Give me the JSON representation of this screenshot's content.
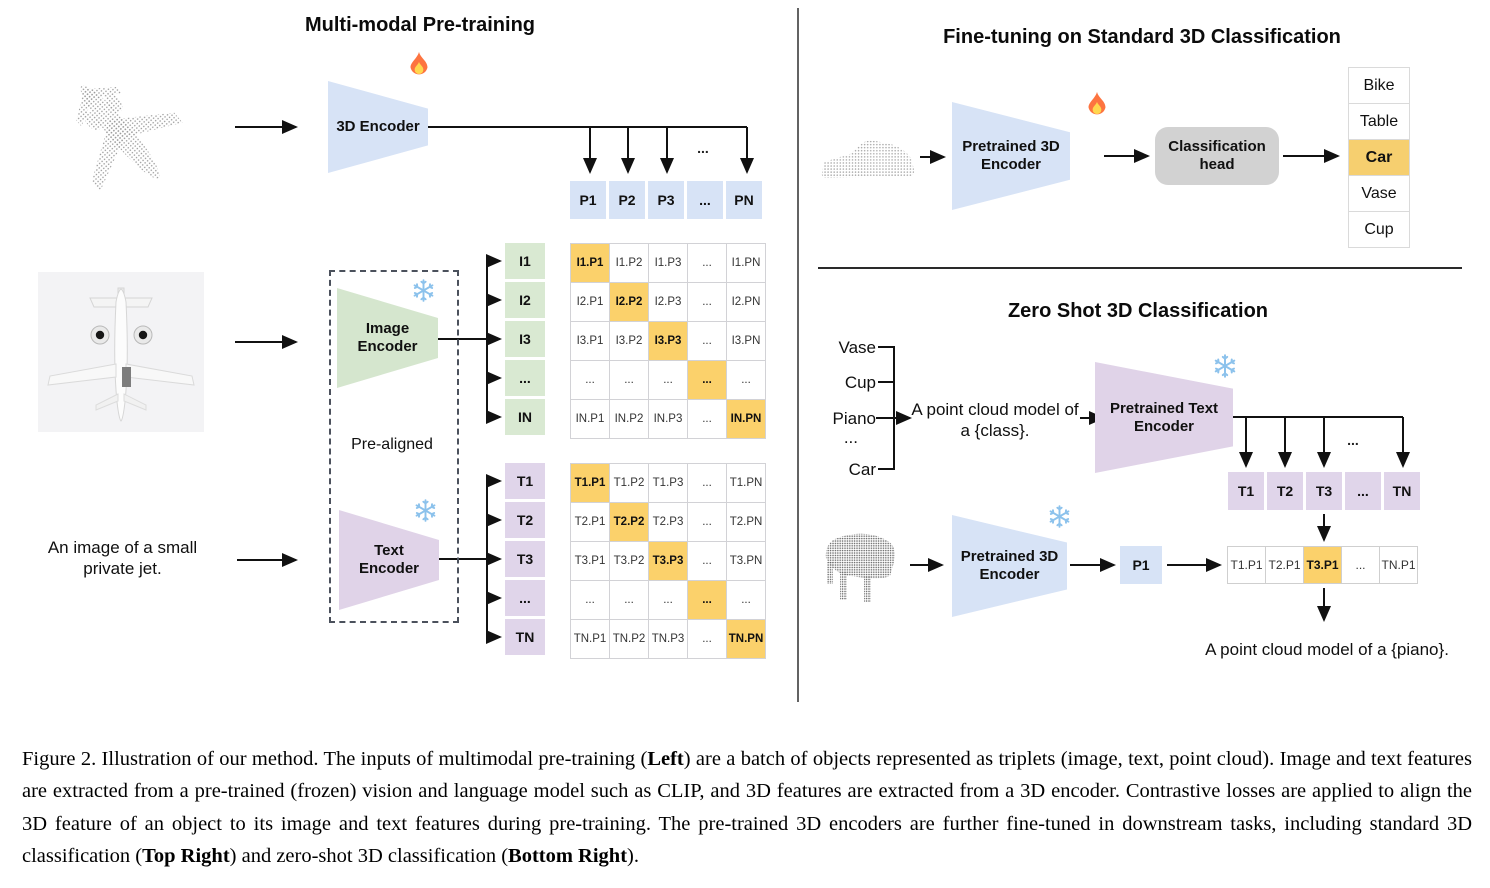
{
  "figure": {
    "pretraining": {
      "title": "Multi-modal Pre-training",
      "encoder3d_label": "3D Encoder",
      "image_encoder_label_lines": [
        "Image",
        "Encoder"
      ],
      "text_encoder_label_lines": [
        "Text",
        "Encoder"
      ],
      "prealigned": "Pre-aligned",
      "image_caption_lines": [
        "An image of a small",
        "private jet."
      ],
      "ellipsis": "...",
      "p_row": [
        "P1",
        "P2",
        "P3",
        "...",
        "PN"
      ],
      "i_col": [
        "I1",
        "I2",
        "I3",
        "...",
        "IN"
      ],
      "t_col": [
        "T1",
        "T2",
        "T3",
        "...",
        "TN"
      ],
      "image_matrix": [
        [
          "I1.P1",
          "I1.P2",
          "I1.P3",
          "...",
          "I1.PN"
        ],
        [
          "I2.P1",
          "I2.P2",
          "I2.P3",
          "...",
          "I2.PN"
        ],
        [
          "I3.P1",
          "I3.P2",
          "I3.P3",
          "...",
          "I3.PN"
        ],
        [
          "...",
          "...",
          "...",
          "...",
          "..."
        ],
        [
          "IN.P1",
          "IN.P2",
          "IN.P3",
          "...",
          "IN.PN"
        ]
      ],
      "text_matrix": [
        [
          "T1.P1",
          "T1.P2",
          "T1.P3",
          "...",
          "T1.PN"
        ],
        [
          "T2.P1",
          "T2.P2",
          "T2.P3",
          "...",
          "T2.PN"
        ],
        [
          "T3.P1",
          "T3.P2",
          "T3.P3",
          "...",
          "T3.PN"
        ],
        [
          "...",
          "...",
          "...",
          "...",
          "..."
        ],
        [
          "TN.P1",
          "TN.P2",
          "TN.P3",
          "...",
          "TN.PN"
        ]
      ]
    },
    "finetune": {
      "title": "Fine-tuning on Standard 3D Classification",
      "encoder_label_lines": [
        "Pretrained 3D",
        "Encoder"
      ],
      "head_label_lines": [
        "Classification",
        "head"
      ],
      "classes": [
        "Bike",
        "Table",
        "Car",
        "Vase",
        "Cup"
      ],
      "predicted_class": "Car"
    },
    "zeroshot": {
      "title": "Zero Shot 3D Classification",
      "class_labels": [
        "Vase",
        "Cup",
        "Piano",
        "...",
        "Car"
      ],
      "prompt_lines": [
        "A point cloud model of",
        "a {class}."
      ],
      "text_encoder_label_lines": [
        "Pretrained Text",
        "Encoder"
      ],
      "encoder3d_label_lines": [
        "Pretrained 3D",
        "Encoder"
      ],
      "t_row": [
        "T1",
        "T2",
        "T3",
        "...",
        "TN"
      ],
      "p_cell": "P1",
      "sim_row": [
        "T1.P1",
        "T2.P1",
        "T3.P1",
        "...",
        "TN.P1"
      ],
      "highlighted_sim": "T3.P1",
      "ellipsis": "...",
      "result_prompt": "A point cloud model of a {piano}."
    },
    "caption_segments": [
      {
        "text": "Figure 2. Illustration of our method. The inputs of multimodal pre-training (",
        "bold": false
      },
      {
        "text": "Left",
        "bold": true
      },
      {
        "text": ") are a batch of objects represented as triplets (image, text, point cloud).  Image and text features are extracted from a pre-trained (frozen) vision and language model such as CLIP, and 3D features are extracted from a 3D encoder.  Contrastive losses are applied to align the 3D feature of an object to its image and text features during pre-training. The pre-trained 3D encoders are further fine-tuned in downstream tasks, including standard 3D classification (",
        "bold": false
      },
      {
        "text": "Top Right",
        "bold": true
      },
      {
        "text": ") and zero-shot 3D classification (",
        "bold": false
      },
      {
        "text": "Bottom Right",
        "bold": true
      },
      {
        "text": ").",
        "bold": false
      }
    ]
  },
  "icons": {
    "trainable": "fire-icon",
    "frozen": "snowflake-icon"
  },
  "colors": {
    "encoder_blue": "#d7e3f6",
    "encoder_green": "#d5e6ce",
    "encoder_purple": "#e0d3e8",
    "highlight_orange": "#fbd16b",
    "head_gray": "#d2d2d2"
  }
}
